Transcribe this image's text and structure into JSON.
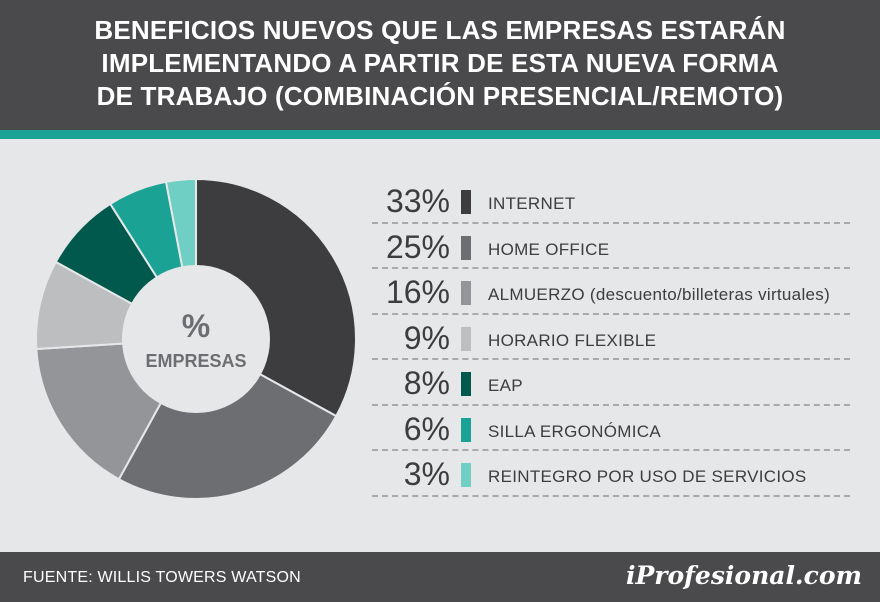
{
  "title": {
    "line1": "BENEFICIOS NUEVOS QUE LAS EMPRESAS ESTARÁN",
    "line2": "IMPLEMENTANDO A PARTIR DE ESTA NUEVA FORMA",
    "line3": "DE TRABAJO (COMBINACIÓN PRESENCIAL/REMOTO)"
  },
  "center": {
    "symbol": "%",
    "label": "EMPRESAS"
  },
  "footer": {
    "source": "FUENTE: WILLIS TOWERS WATSON",
    "brand": "iProfesional.com"
  },
  "colors": {
    "header_bg": "#4a4a4c",
    "accent": "#1aa394",
    "background": "#e6e7e8"
  },
  "chart_data": {
    "type": "pie",
    "title": "BENEFICIOS NUEVOS QUE LAS EMPRESAS ESTARÁN IMPLEMENTANDO A PARTIR DE ESTA NUEVA FORMA DE TRABAJO (COMBINACIÓN PRESENCIAL/REMOTO)",
    "center_label": "% EMPRESAS",
    "categories": [
      "INTERNET",
      "HOME OFFICE",
      "ALMUERZO (descuento/billeteras virtuales)",
      "HORARIO FLEXIBLE",
      "EAP",
      "SILLA ERGONÓMICA",
      "REINTEGRO POR USO DE SERVICIOS"
    ],
    "values": [
      33,
      25,
      16,
      9,
      8,
      6,
      3
    ],
    "value_labels": [
      "33%",
      "25%",
      "16%",
      "9%",
      "8%",
      "6%",
      "3%"
    ],
    "colors": [
      "#3d3d3f",
      "#6d6e71",
      "#939598",
      "#bcbec0",
      "#00594c",
      "#1aa394",
      "#6fcfc4"
    ]
  }
}
